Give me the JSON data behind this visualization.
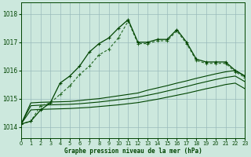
{
  "title": "Graphe pression niveau de la mer (hPa)",
  "background_color": "#cce8dd",
  "grid_color": "#99bbbb",
  "line_dark": "#004400",
  "line_med": "#226622",
  "xlim": [
    0,
    23
  ],
  "ylim": [
    1013.6,
    1018.4
  ],
  "yticks": [
    1014,
    1015,
    1016,
    1017,
    1018
  ],
  "xticks": [
    0,
    1,
    2,
    3,
    4,
    5,
    6,
    7,
    8,
    9,
    10,
    11,
    12,
    13,
    14,
    15,
    16,
    17,
    18,
    19,
    20,
    21,
    22,
    23
  ],
  "main_line": [
    1014.1,
    1014.2,
    1014.6,
    1014.85,
    1015.55,
    1015.8,
    1016.15,
    1016.65,
    1016.95,
    1017.15,
    1017.5,
    1017.8,
    1017.0,
    1017.0,
    1017.1,
    1017.1,
    1017.45,
    1017.0,
    1016.4,
    1016.3,
    1016.3,
    1016.3,
    1016.0,
    1015.8
  ],
  "second_line": [
    1014.1,
    1014.2,
    1014.75,
    1014.85,
    1015.15,
    1015.45,
    1015.85,
    1016.15,
    1016.55,
    1016.75,
    1017.15,
    1017.75,
    1016.95,
    1016.95,
    1017.05,
    1017.05,
    1017.4,
    1016.95,
    1016.35,
    1016.25,
    1016.25,
    1016.25,
    1015.95,
    1015.75
  ],
  "flat1": [
    1014.1,
    1014.85,
    1014.87,
    1014.88,
    1014.89,
    1014.9,
    1014.93,
    1014.97,
    1015.0,
    1015.05,
    1015.1,
    1015.15,
    1015.2,
    1015.3,
    1015.38,
    1015.46,
    1015.55,
    1015.63,
    1015.72,
    1015.8,
    1015.88,
    1015.95,
    1016.0,
    1015.8
  ],
  "flat2": [
    1014.1,
    1014.75,
    1014.77,
    1014.78,
    1014.79,
    1014.8,
    1014.82,
    1014.85,
    1014.88,
    1014.92,
    1014.96,
    1015.0,
    1015.05,
    1015.12,
    1015.19,
    1015.27,
    1015.35,
    1015.43,
    1015.52,
    1015.6,
    1015.68,
    1015.75,
    1015.8,
    1015.6
  ],
  "flat3": [
    1014.1,
    1014.6,
    1014.62,
    1014.63,
    1014.64,
    1014.65,
    1014.67,
    1014.69,
    1014.72,
    1014.75,
    1014.78,
    1014.82,
    1014.86,
    1014.92,
    1014.98,
    1015.05,
    1015.12,
    1015.19,
    1015.27,
    1015.35,
    1015.42,
    1015.5,
    1015.55,
    1015.35
  ]
}
